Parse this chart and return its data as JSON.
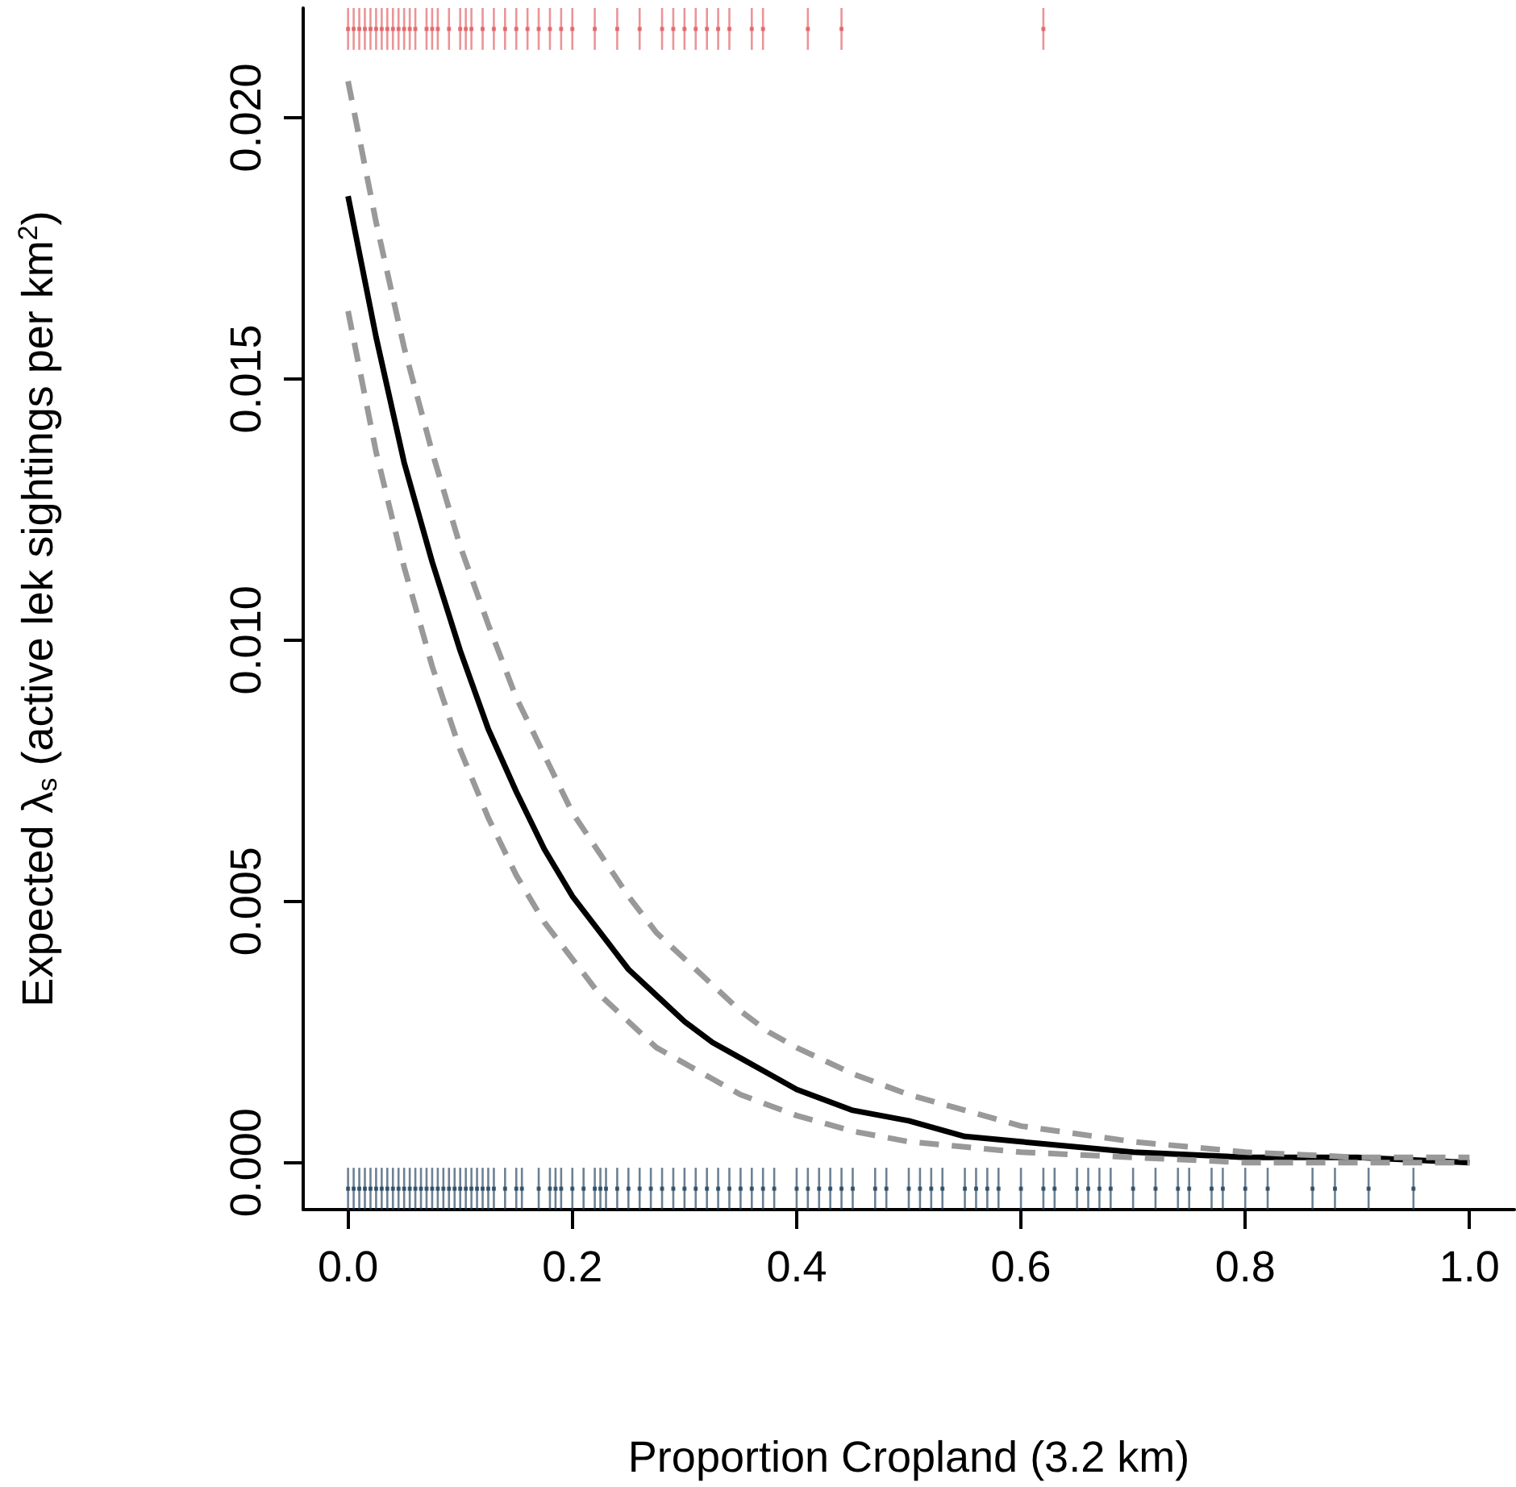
{
  "chart_data": {
    "type": "line",
    "xlabel": "Proportion Cropland (3.2 km)",
    "ylabel": "Expected λ$_{s}$ (active lek sightings per km$^{2}$)",
    "x": [
      0,
      0.025,
      0.05,
      0.075,
      0.1,
      0.125,
      0.15,
      0.175,
      0.2,
      0.225,
      0.25,
      0.275,
      0.3,
      0.325,
      0.35,
      0.375,
      0.4,
      0.45,
      0.5,
      0.55,
      0.6,
      0.7,
      0.8,
      0.9,
      1.0
    ],
    "series": [
      {
        "color": "#000000",
        "line_style": "solid",
        "values": [
          0.0185,
          0.0158,
          0.0134,
          0.0115,
          0.0098,
          0.0083,
          0.0071,
          0.006,
          0.0051,
          0.0044,
          0.0037,
          0.0032,
          0.0027,
          0.0023,
          0.002,
          0.0017,
          0.0014,
          0.001,
          0.0008,
          0.0005,
          0.0004,
          0.0002,
          0.0001,
          0.0001,
          0.0
        ]
      },
      {
        "color": "#999999",
        "line_style": "dashed",
        "values": [
          0.0207,
          0.018,
          0.0156,
          0.0136,
          0.0118,
          0.0103,
          0.0089,
          0.0078,
          0.0067,
          0.0059,
          0.0051,
          0.0044,
          0.0039,
          0.0034,
          0.0029,
          0.0025,
          0.0022,
          0.0017,
          0.0013,
          0.001,
          0.0007,
          0.0004,
          0.0002,
          0.0001,
          0.0001
        ]
      },
      {
        "color": "#999999",
        "line_style": "dashed",
        "values": [
          0.0163,
          0.0136,
          0.0114,
          0.0095,
          0.0079,
          0.0066,
          0.0055,
          0.0046,
          0.0039,
          0.0032,
          0.0027,
          0.0022,
          0.0019,
          0.0016,
          0.0013,
          0.0011,
          0.0009,
          0.0006,
          0.0004,
          0.0003,
          0.0002,
          0.0001,
          0.0,
          0.0,
          0.0
        ]
      },
      {
        "type": "scatter",
        "marker": "square",
        "color": "#e05a5f",
        "x": [
          0,
          0.005,
          0.01,
          0.015,
          0.02,
          0.025,
          0.03,
          0.035,
          0.04,
          0.045,
          0.05,
          0.055,
          0.06,
          0.07,
          0.075,
          0.08,
          0.09,
          0.1,
          0.105,
          0.11,
          0.12,
          0.13,
          0.14,
          0.15,
          0.16,
          0.17,
          0.18,
          0.19,
          0.2,
          0.22,
          0.24,
          0.26,
          0.28,
          0.29,
          0.3,
          0.31,
          0.32,
          0.33,
          0.34,
          0.36,
          0.37,
          0.41,
          0.44,
          0.62
        ],
        "errors": [
          0.0004,
          0.0004,
          0.0004,
          0.0004,
          0.0004,
          0.0004,
          0.0004,
          0.0004,
          0.0004,
          0.0004,
          0.0004,
          0.0004,
          0.0004,
          0.0004,
          0.0004,
          0.0004,
          0.0004,
          0.0004,
          0.0004,
          0.0004,
          0.0004,
          0.0004,
          0.0004,
          0.0004,
          0.0004,
          0.0004,
          0.0004,
          0.0004,
          0.0004,
          0.0004,
          0.0004,
          0.0004,
          0.0004,
          0.0004,
          0.0004,
          0.0004,
          0.0004,
          0.0004,
          0.0004,
          0.0004,
          0.0004,
          0.0004,
          0.0004,
          0.0004
        ],
        "values": [
          0.0217,
          0.0217,
          0.0217,
          0.0217,
          0.0217,
          0.0217,
          0.0217,
          0.0217,
          0.0217,
          0.0217,
          0.0217,
          0.0217,
          0.0217,
          0.0217,
          0.0217,
          0.0217,
          0.0217,
          0.0217,
          0.0217,
          0.0217,
          0.0217,
          0.0217,
          0.0217,
          0.0217,
          0.0217,
          0.0217,
          0.0217,
          0.0217,
          0.0217,
          0.0217,
          0.0217,
          0.0217,
          0.0217,
          0.0217,
          0.0217,
          0.0217,
          0.0217,
          0.0217,
          0.0217,
          0.0217,
          0.0217,
          0.0217,
          0.0217,
          0.0217
        ]
      },
      {
        "type": "scatter",
        "marker": "square",
        "color": "#1d3e5a",
        "x": [
          0,
          0.005,
          0.01,
          0.015,
          0.02,
          0.025,
          0.03,
          0.035,
          0.04,
          0.045,
          0.05,
          0.055,
          0.06,
          0.065,
          0.07,
          0.075,
          0.08,
          0.085,
          0.09,
          0.095,
          0.1,
          0.105,
          0.11,
          0.115,
          0.12,
          0.125,
          0.13,
          0.14,
          0.15,
          0.155,
          0.17,
          0.18,
          0.185,
          0.19,
          0.2,
          0.21,
          0.22,
          0.225,
          0.23,
          0.24,
          0.25,
          0.26,
          0.27,
          0.28,
          0.29,
          0.3,
          0.31,
          0.32,
          0.33,
          0.34,
          0.35,
          0.36,
          0.37,
          0.38,
          0.4,
          0.41,
          0.42,
          0.43,
          0.44,
          0.45,
          0.47,
          0.48,
          0.5,
          0.51,
          0.52,
          0.53,
          0.55,
          0.56,
          0.57,
          0.58,
          0.6,
          0.62,
          0.63,
          0.65,
          0.66,
          0.67,
          0.68,
          0.7,
          0.72,
          0.74,
          0.75,
          0.77,
          0.78,
          0.8,
          0.82,
          0.86,
          0.88,
          0.91,
          0.95
        ],
        "errors": [
          0.0004,
          0.0004,
          0.0004,
          0.0004,
          0.0004,
          0.0004,
          0.0004,
          0.0004,
          0.0004,
          0.0004,
          0.0004,
          0.0004,
          0.0004,
          0.0004,
          0.0004,
          0.0004,
          0.0004,
          0.0004,
          0.0004,
          0.0004,
          0.0004,
          0.0004,
          0.0004,
          0.0004,
          0.0004,
          0.0004,
          0.0004,
          0.0004,
          0.0004,
          0.0004,
          0.0004,
          0.0004,
          0.0004,
          0.0004,
          0.0004,
          0.0004,
          0.0004,
          0.0004,
          0.0004,
          0.0004,
          0.0004,
          0.0004,
          0.0004,
          0.0004,
          0.0004,
          0.0004,
          0.0004,
          0.0004,
          0.0004,
          0.0004,
          0.0004,
          0.0004,
          0.0004,
          0.0004,
          0.0004,
          0.0004,
          0.0004,
          0.0004,
          0.0004,
          0.0004,
          0.0004,
          0.0004,
          0.0004,
          0.0004,
          0.0004,
          0.0004,
          0.0004,
          0.0004,
          0.0004,
          0.0004,
          0.0004,
          0.0004,
          0.0004,
          0.0004,
          0.0004,
          0.0004,
          0.0004,
          0.0004,
          0.0004,
          0.0004,
          0.0004,
          0.0004,
          0.0004,
          0.0004,
          0.0004,
          0.0004,
          0.0004,
          0.0004,
          0.0004
        ],
        "values": [
          -0.0005,
          -0.0005,
          -0.0005,
          -0.0005,
          -0.0005,
          -0.0005,
          -0.0005,
          -0.0005,
          -0.0005,
          -0.0005,
          -0.0005,
          -0.0005,
          -0.0005,
          -0.0005,
          -0.0005,
          -0.0005,
          -0.0005,
          -0.0005,
          -0.0005,
          -0.0005,
          -0.0005,
          -0.0005,
          -0.0005,
          -0.0005,
          -0.0005,
          -0.0005,
          -0.0005,
          -0.0005,
          -0.0005,
          -0.0005,
          -0.0005,
          -0.0005,
          -0.0005,
          -0.0005,
          -0.0005,
          -0.0005,
          -0.0005,
          -0.0005,
          -0.0005,
          -0.0005,
          -0.0005,
          -0.0005,
          -0.0005,
          -0.0005,
          -0.0005,
          -0.0005,
          -0.0005,
          -0.0005,
          -0.0005,
          -0.0005,
          -0.0005,
          -0.0005,
          -0.0005,
          -0.0005,
          -0.0005,
          -0.0005,
          -0.0005,
          -0.0005,
          -0.0005,
          -0.0005,
          -0.0005,
          -0.0005,
          -0.0005,
          -0.0005,
          -0.0005,
          -0.0005,
          -0.0005,
          -0.0005,
          -0.0005,
          -0.0005,
          -0.0005,
          -0.0005,
          -0.0005,
          -0.0005,
          -0.0005,
          -0.0005,
          -0.0005,
          -0.0005,
          -0.0005,
          -0.0005,
          -0.0005,
          -0.0005,
          -0.0005,
          -0.0005,
          -0.0005,
          -0.0005,
          -0.0005,
          -0.0005,
          -0.0005
        ]
      }
    ],
    "xlim": [
      -0.04,
      1.04
    ],
    "ylim": [
      -0.0009,
      0.0221
    ],
    "xticks": [
      {
        "value": 0,
        "label": "0.0"
      },
      0.2,
      0.4,
      0.6,
      0.8,
      {
        "value": 1,
        "label": "1.0"
      }
    ],
    "yticks": [
      {
        "value": 0,
        "label": "0.000"
      },
      0.005,
      {
        "value": 0.01,
        "label": "0.010"
      },
      0.015,
      {
        "value": 0.02,
        "label": "0.020"
      }
    ],
    "grid": false,
    "marker": "none"
  }
}
